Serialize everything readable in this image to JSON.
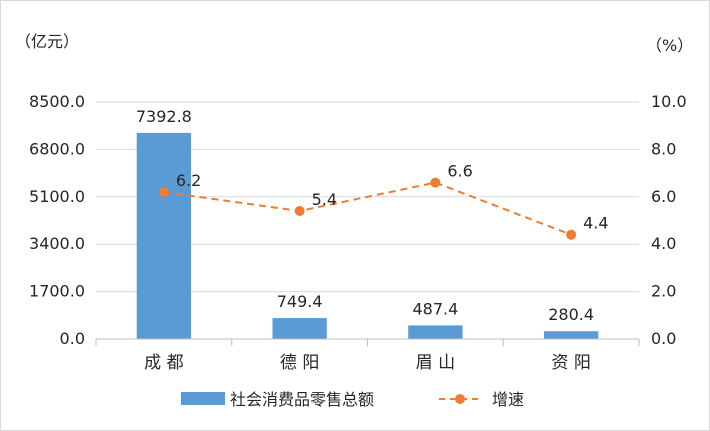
{
  "chart_data": {
    "type": "bar",
    "categories": [
      "成 都",
      "德 阳",
      "眉 山",
      "资 阳"
    ],
    "series": [
      {
        "name": "社会消费品零售总额",
        "type": "bar",
        "axis": "left",
        "color": "#5b9bd5",
        "values": [
          7392.8,
          749.4,
          487.4,
          280.4
        ],
        "labels": [
          "7392.8",
          "749.4",
          "487.4",
          "280.4"
        ]
      },
      {
        "name": "增速",
        "type": "line",
        "axis": "right",
        "color": "#ed7d31",
        "line_style": "dashed",
        "marker": "circle",
        "values": [
          6.2,
          5.4,
          6.6,
          4.4
        ],
        "labels": [
          "6.2",
          "5.4",
          "6.6",
          "4.4"
        ]
      }
    ],
    "y_left": {
      "unit_label": "（亿元）",
      "ylim": [
        0,
        8500
      ],
      "ticks": [
        0,
        1700,
        3400,
        5100,
        6800,
        8500
      ],
      "tick_labels": [
        "0.0",
        "1700.0",
        "3400.0",
        "5100.0",
        "6800.0",
        "8500.0"
      ]
    },
    "y_right": {
      "unit_label": "（%）",
      "ylim": [
        0,
        10
      ],
      "ticks": [
        0,
        2,
        4,
        6,
        8,
        10
      ],
      "tick_labels": [
        "0.0",
        "2.0",
        "4.0",
        "6.0",
        "8.0",
        "10.0"
      ]
    },
    "grid": true,
    "legend_position": "bottom"
  }
}
